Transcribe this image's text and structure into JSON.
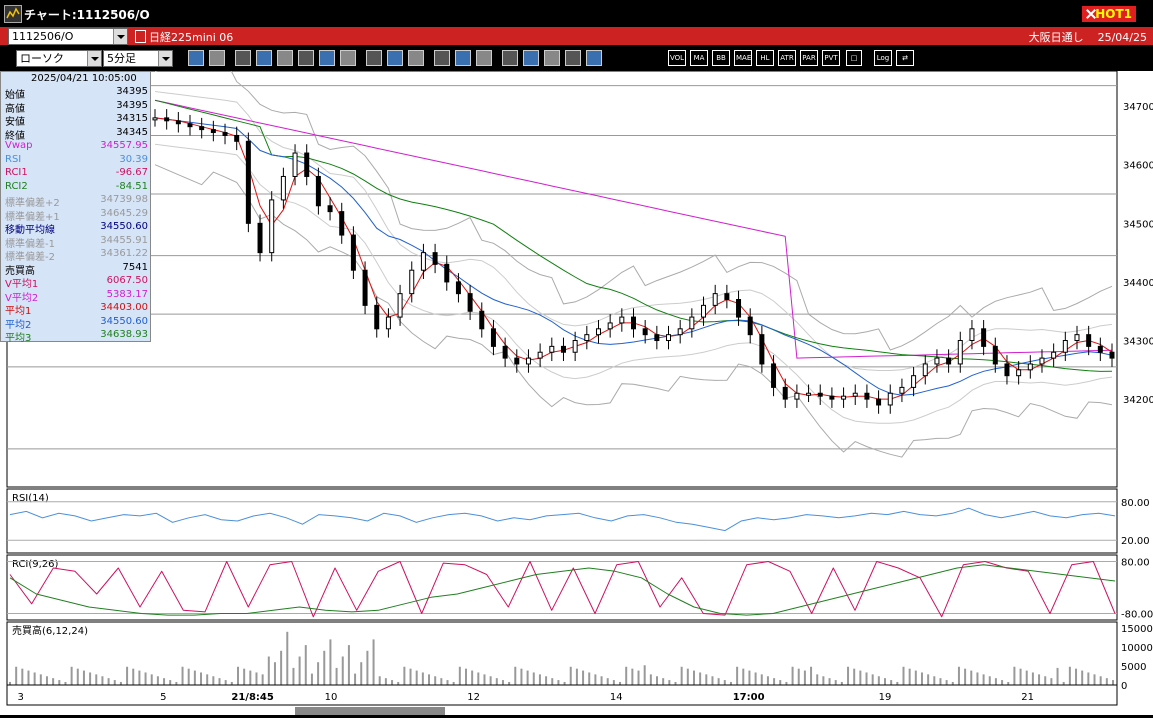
{
  "window": {
    "title": "チャート:1112506/O",
    "hot_label": "HOT1"
  },
  "header": {
    "code_value": "1112506/O",
    "instrument": "日経225mini 06",
    "market": "大阪日通し",
    "date": "25/04/25",
    "chart_type": "ローソク",
    "interval": "5分足"
  },
  "toolbar": {
    "icons": [
      "zoom-icon",
      "crosshair-icon",
      "pen-icon",
      "eraser-icon",
      "cursor-icon",
      "pointer-icon",
      "note-icon",
      "trash-icon",
      "vbar-icon",
      "prev-icon",
      "all-icon",
      "settings-icon",
      "tools-icon",
      "palette-icon",
      "paste-icon",
      "search-icon",
      "chart-icon",
      "flag-icon",
      "disabled-icon"
    ],
    "labels": [
      "VOL",
      "MA",
      "BB",
      "MAE",
      "HL",
      "ATR",
      "PAR",
      "PVT",
      "□",
      "Log",
      "⇄"
    ]
  },
  "info": {
    "timestamp": "2025/04/21  10:05:00",
    "rows": [
      {
        "k": "始値",
        "v": "34395",
        "c": "#000"
      },
      {
        "k": "高値",
        "v": "34395",
        "c": "#000"
      },
      {
        "k": "安値",
        "v": "34315",
        "c": "#000"
      },
      {
        "k": "終値",
        "v": "34345",
        "c": "#000"
      },
      {
        "k": "Vwap",
        "v": "34557.95",
        "c": "#d020d0"
      },
      {
        "k": "RSI",
        "v": "30.39",
        "c": "#4a90d9"
      },
      {
        "k": "RCI1",
        "v": "-96.67",
        "c": "#d01060"
      },
      {
        "k": "RCI2",
        "v": "-84.51",
        "c": "#208020"
      },
      {
        "k": "標準偏差+2",
        "v": "34739.98",
        "c": "#999"
      },
      {
        "k": "標準偏差+1",
        "v": "34645.29",
        "c": "#999"
      },
      {
        "k": "移動平均線",
        "v": "34550.60",
        "c": "#000080"
      },
      {
        "k": "標準偏差-1",
        "v": "34455.91",
        "c": "#999"
      },
      {
        "k": "標準偏差-2",
        "v": "34361.22",
        "c": "#999"
      },
      {
        "k": "売買高",
        "v": "7541",
        "c": "#000"
      },
      {
        "k": "V平均1",
        "v": "6067.50",
        "c": "#d01060"
      },
      {
        "k": "V平均2",
        "v": "5383.17",
        "c": "#d020d0"
      },
      {
        "k": "平均1",
        "v": "34403.00",
        "c": "#d01010"
      },
      {
        "k": "平均2",
        "v": "34550.60",
        "c": "#2060d0"
      },
      {
        "k": "平均3",
        "v": "34638.93",
        "c": "#208020"
      }
    ]
  },
  "panes": {
    "rsi_label": "RSI(14)",
    "rci_label": "RCI(9,26)",
    "vol_label": "売買高(6,12,24)"
  },
  "colors": {
    "sma_short": "#e01010",
    "sma_mid": "#2060d0",
    "sma_long": "#108010",
    "vwap": "#d020d0",
    "bb": "#aaaaaa",
    "rsi": "#4a90d9",
    "rci1": "#d01060",
    "rci2": "#208020"
  },
  "chart_data": {
    "type": "candlestick",
    "price_axis": {
      "ticks": [
        34700,
        34600,
        34500,
        34400,
        34300,
        34200
      ],
      "range": [
        34050,
        34760
      ]
    },
    "rsi_axis": {
      "ticks": [
        "80.00",
        "20.00"
      ]
    },
    "rci_axis": {
      "ticks": [
        "80.00",
        "-80.00"
      ]
    },
    "vol_axis": {
      "ticks": [
        "15000",
        "10000",
        "5000",
        "0"
      ]
    },
    "x_labels": [
      {
        "label": "3",
        "pos": 0.005,
        "bold": false
      },
      {
        "label": "5",
        "pos": 0.135,
        "bold": false
      },
      {
        "label": "21/8:45",
        "pos": 0.2,
        "bold": true
      },
      {
        "label": "10",
        "pos": 0.285,
        "bold": false
      },
      {
        "label": "12",
        "pos": 0.415,
        "bold": false
      },
      {
        "label": "14",
        "pos": 0.545,
        "bold": false
      },
      {
        "label": "17:00",
        "pos": 0.657,
        "bold": true
      },
      {
        "label": "19",
        "pos": 0.79,
        "bold": false
      },
      {
        "label": "21",
        "pos": 0.92,
        "bold": false
      }
    ],
    "closes": [
      34680,
      34675,
      34670,
      34665,
      34660,
      34655,
      34650,
      34640,
      34500,
      34450,
      34540,
      34580,
      34620,
      34580,
      34530,
      34520,
      34480,
      34420,
      34360,
      34320,
      34340,
      34380,
      34420,
      34450,
      34430,
      34400,
      34380,
      34350,
      34320,
      34290,
      34270,
      34260,
      34270,
      34280,
      34290,
      34280,
      34300,
      34310,
      34320,
      34330,
      34340,
      34320,
      34310,
      34300,
      34310,
      34320,
      34340,
      34360,
      34380,
      34370,
      34340,
      34310,
      34260,
      34220,
      34200,
      34210,
      34210,
      34205,
      34200,
      34205,
      34210,
      34200,
      34190,
      34210,
      34220,
      34240,
      34260,
      34270,
      34260,
      34300,
      34320,
      34290,
      34260,
      34240,
      34250,
      34260,
      34270,
      34280,
      34300,
      34310,
      34290,
      34280,
      34270
    ],
    "rsi": [
      60,
      65,
      55,
      62,
      58,
      50,
      55,
      60,
      58,
      62,
      48,
      55,
      60,
      52,
      50,
      58,
      62,
      55,
      45,
      60,
      58,
      55,
      50,
      62,
      58,
      48,
      55,
      60,
      62,
      58,
      50,
      55,
      52,
      58,
      60,
      62,
      55,
      50,
      58,
      60,
      55,
      48,
      45,
      40,
      35,
      50,
      55,
      52,
      55,
      60,
      58,
      55,
      58,
      62,
      60,
      65,
      60,
      58,
      62,
      70,
      60,
      55,
      60,
      65,
      58,
      55,
      60,
      62,
      58
    ],
    "rci1": [
      40,
      -50,
      60,
      50,
      -20,
      60,
      -60,
      50,
      -70,
      -75,
      80,
      -60,
      70,
      80,
      -90,
      60,
      -70,
      50,
      80,
      -80,
      75,
      70,
      40,
      -60,
      80,
      -70,
      60,
      -80,
      70,
      80,
      -60,
      30,
      -80,
      -85,
      70,
      80,
      50,
      -80,
      60,
      -70,
      80,
      60,
      30,
      -90,
      70,
      80,
      60,
      50,
      -80,
      70,
      80,
      -80
    ],
    "rci2": [
      30,
      -20,
      -40,
      -60,
      -70,
      -80,
      -85,
      -85,
      -80,
      -80,
      -70,
      -60,
      -70,
      -75,
      -70,
      -50,
      -30,
      -20,
      0,
      20,
      40,
      50,
      60,
      50,
      30,
      -20,
      -60,
      -80,
      -85,
      -80,
      -60,
      -40,
      -20,
      0,
      20,
      40,
      60,
      70,
      60,
      50,
      40,
      30,
      20
    ]
  }
}
